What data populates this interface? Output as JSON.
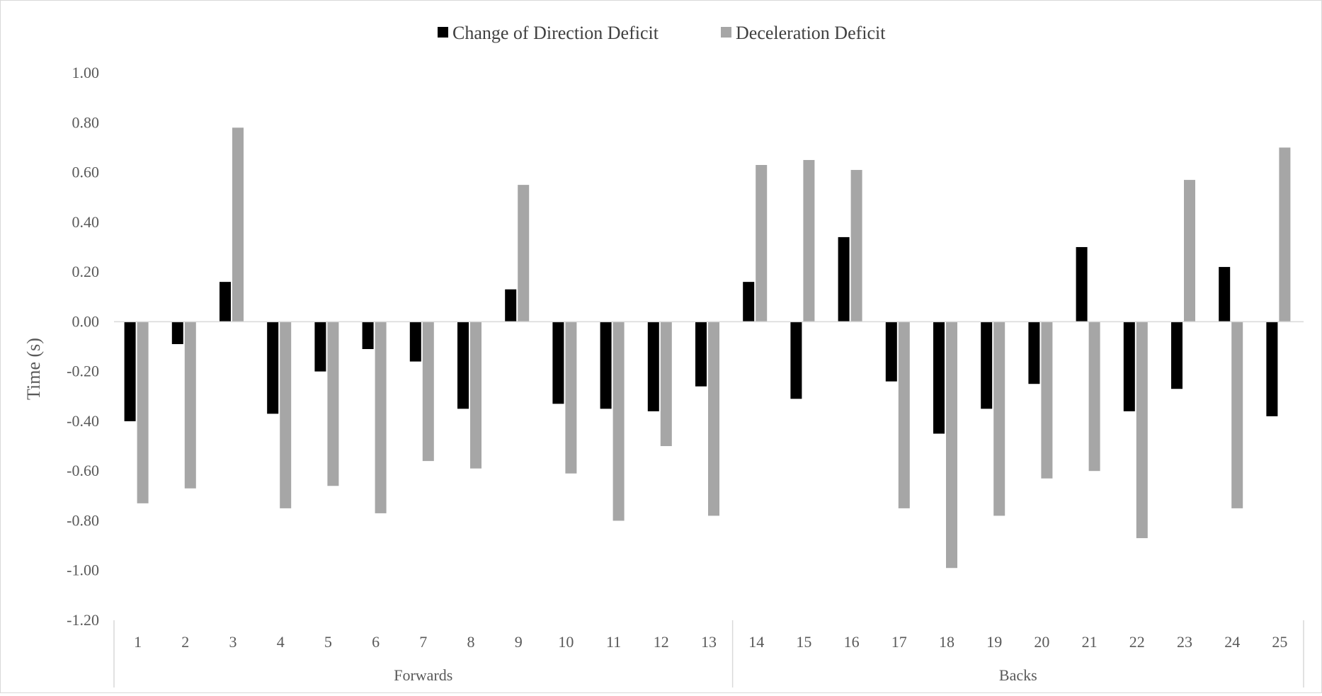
{
  "chart_data": {
    "type": "bar",
    "title": "",
    "xlabel": "",
    "ylabel": "Time (s)",
    "ylim": [
      -1.2,
      1.0
    ],
    "yticks": [
      "1.00",
      "0.80",
      "0.60",
      "0.40",
      "0.20",
      "0.00",
      "-0.20",
      "-0.40",
      "-0.60",
      "-0.80",
      "-1.00",
      "-1.20"
    ],
    "ytick_values": [
      1.0,
      0.8,
      0.6,
      0.4,
      0.2,
      0.0,
      -0.2,
      -0.4,
      -0.6,
      -0.8,
      -1.0,
      -1.2
    ],
    "grid": false,
    "legend_position": "top-center",
    "categories": [
      "1",
      "2",
      "3",
      "4",
      "5",
      "6",
      "7",
      "8",
      "9",
      "10",
      "11",
      "12",
      "13",
      "14",
      "15",
      "16",
      "17",
      "18",
      "19",
      "20",
      "21",
      "22",
      "23",
      "24",
      "25"
    ],
    "groups": [
      {
        "label": "Forwards",
        "start": 0,
        "end": 12
      },
      {
        "label": "Backs",
        "start": 13,
        "end": 24
      }
    ],
    "series": [
      {
        "name": "Change of Direction Deficit",
        "color": "#000000",
        "values": [
          -0.4,
          -0.09,
          0.16,
          -0.37,
          -0.2,
          -0.11,
          -0.16,
          -0.35,
          0.13,
          -0.33,
          -0.35,
          -0.36,
          -0.26,
          0.16,
          -0.31,
          0.34,
          -0.24,
          -0.45,
          -0.35,
          -0.25,
          0.3,
          -0.36,
          -0.27,
          0.22,
          -0.38
        ]
      },
      {
        "name": "Deceleration Deficit",
        "color": "#a6a6a6",
        "values": [
          -0.73,
          -0.67,
          0.78,
          -0.75,
          -0.66,
          -0.77,
          -0.56,
          -0.59,
          0.55,
          -0.61,
          -0.8,
          -0.5,
          -0.78,
          0.63,
          0.65,
          0.61,
          -0.75,
          -0.99,
          -0.78,
          -0.63,
          -0.6,
          -0.87,
          0.57,
          -0.75,
          0.7
        ]
      }
    ]
  }
}
